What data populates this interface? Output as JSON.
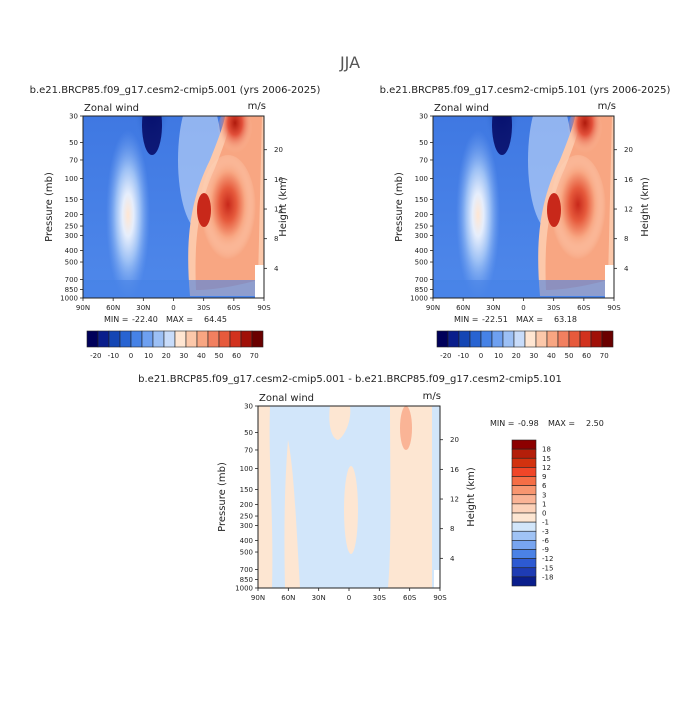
{
  "season_title": "JJA",
  "units": "m/s",
  "variable_label": "Zonal wind",
  "pressure_axis_label": "Pressure (mb)",
  "height_axis_label": "Height (km)",
  "lat_ticks": [
    "90N",
    "60N",
    "30N",
    "0",
    "30S",
    "60S",
    "90S"
  ],
  "pressure_ticks": [
    "30",
    "50",
    "70",
    "100",
    "150",
    "200",
    "250",
    "300",
    "400",
    "500",
    "700",
    "850",
    "1000"
  ],
  "height_ticks": [
    "20",
    "16",
    "12",
    "8",
    "4"
  ],
  "chart_data": [
    {
      "type": "heatmap",
      "title": "b.e21.BRCP85.f09_g17.cesm2-cmip5.001 (yrs 2006-2025)",
      "min_label": "MIN =",
      "min_value": "-22.40",
      "max_label": "MAX =",
      "max_value": "64.45",
      "colorbar_ticks": [
        "-20",
        "-10",
        "0",
        "10",
        "20",
        "30",
        "40",
        "50",
        "60",
        "70"
      ]
    },
    {
      "type": "heatmap",
      "title": "b.e21.BRCP85.f09_g17.cesm2-cmip5.101 (yrs 2006-2025)",
      "min_label": "MIN =",
      "min_value": "-22.51",
      "max_label": "MAX =",
      "max_value": "63.18",
      "colorbar_ticks": [
        "-20",
        "-10",
        "0",
        "10",
        "20",
        "30",
        "40",
        "50",
        "60",
        "70"
      ]
    },
    {
      "type": "heatmap",
      "title": "b.e21.BRCP85.f09_g17.cesm2-cmip5.001 - b.e21.BRCP85.f09_g17.cesm2-cmip5.101",
      "min_label": "MIN =",
      "min_value": "-0.98",
      "max_label": "MAX =",
      "max_value": "2.50",
      "colorbar_ticks": [
        "18",
        "15",
        "12",
        "9",
        "6",
        "3",
        "1",
        "0",
        "-1",
        "-3",
        "-6",
        "-9",
        "-12",
        "-15",
        "-18"
      ]
    }
  ],
  "colors": {
    "abs_scale": [
      "#00005a",
      "#0a1e8c",
      "#1446b4",
      "#2864d2",
      "#4682e6",
      "#6ea0f0",
      "#9cc0f5",
      "#c8dcfa",
      "#ffe6d2",
      "#fcc8aa",
      "#f8a682",
      "#f28060",
      "#e65a3c",
      "#d2321e",
      "#a01008",
      "#6a0000"
    ],
    "diff_scale": [
      "#8c0000",
      "#b41e0a",
      "#d2320f",
      "#f04628",
      "#f56e46",
      "#f89670",
      "#fab496",
      "#fcd2b9",
      "#fde6d2",
      "#d2e6fa",
      "#a0c3f5",
      "#78a5f0",
      "#4b82e6",
      "#2d5ad2",
      "#1e3cb4",
      "#0a1e8c"
    ]
  }
}
